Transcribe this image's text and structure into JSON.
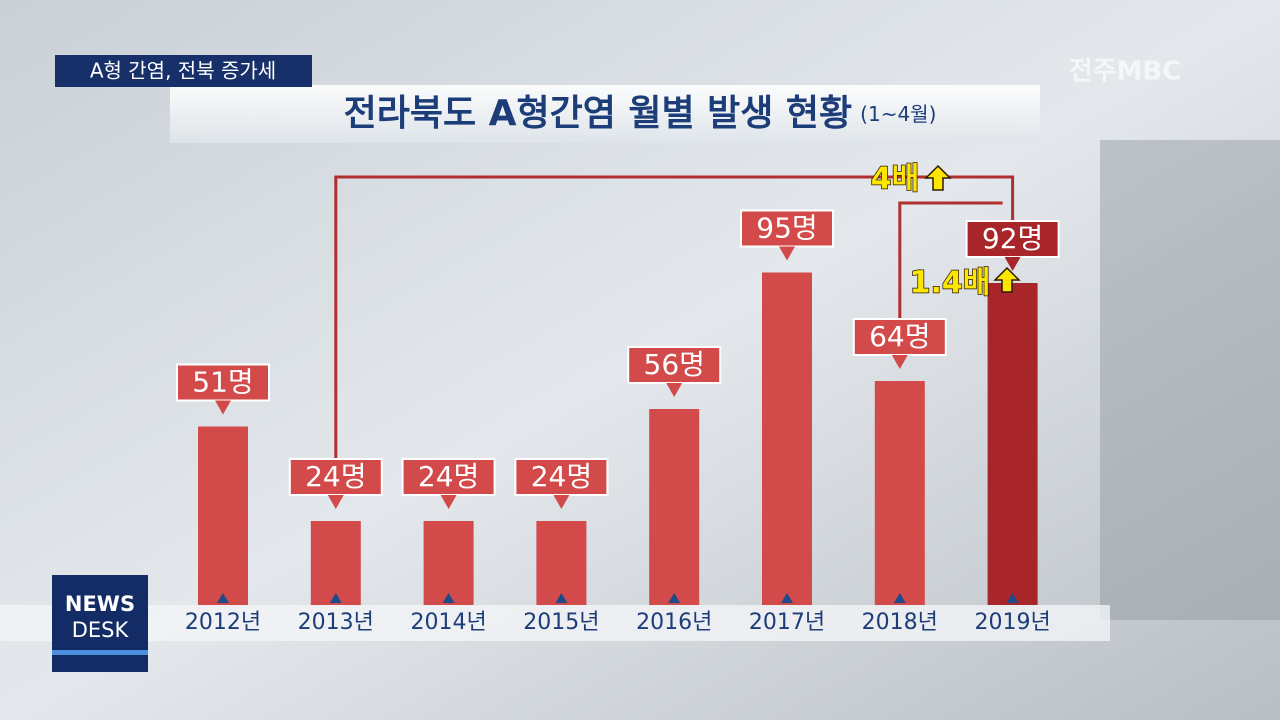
{
  "chart_data": {
    "type": "bar",
    "caption": "A형 간염, 전북 증가세",
    "title": "전라북도 A형간염 월별 발생 현황",
    "subtitle": "(1~4월)",
    "categories": [
      "2012년",
      "2013년",
      "2014년",
      "2015년",
      "2016년",
      "2017년",
      "2018년",
      "2019년"
    ],
    "values": [
      51,
      24,
      24,
      24,
      56,
      95,
      64,
      92
    ],
    "value_labels": [
      "51명",
      "24명",
      "24명",
      "24명",
      "56명",
      "95명",
      "64명",
      "92명"
    ],
    "colors": [
      "#d34a4a",
      "#d34a4a",
      "#d34a4a",
      "#d34a4a",
      "#d34a4a",
      "#d34a4a",
      "#d34a4a",
      "#a82529"
    ],
    "annotations": [
      "4배",
      "1.4배"
    ],
    "logo": "전주MBC",
    "badge": [
      "NEWS",
      "DESK"
    ]
  }
}
